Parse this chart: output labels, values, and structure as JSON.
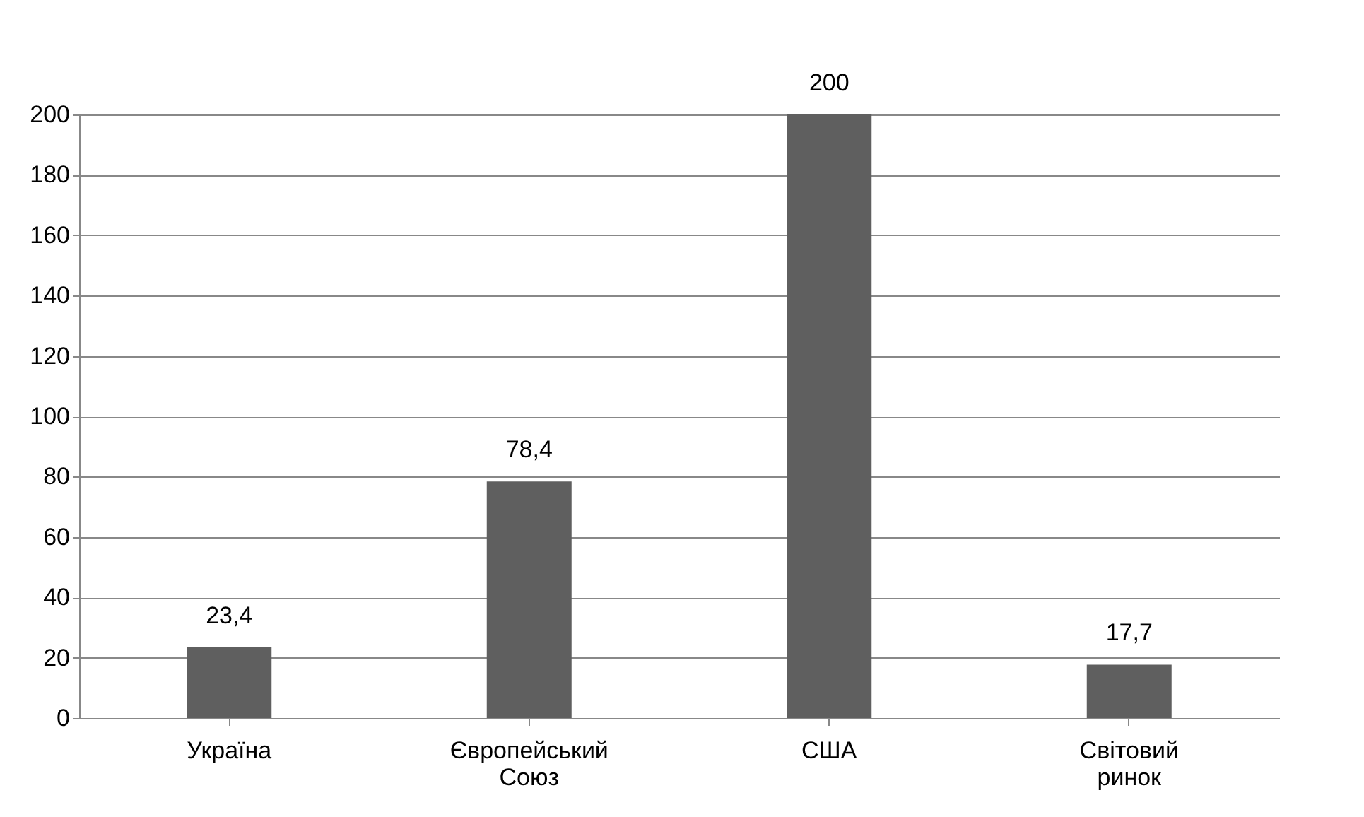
{
  "chart_data": {
    "type": "bar",
    "categories": [
      "Україна",
      "Європейський Союз",
      "США",
      "Світовий ринок"
    ],
    "values": [
      23.4,
      78.4,
      200,
      17.7
    ],
    "value_labels": [
      "23,4",
      "78,4",
      "200",
      "17,7"
    ],
    "color": "#5f5f5f",
    "ylim": [
      0,
      200
    ],
    "yticks": [
      0,
      20,
      40,
      60,
      80,
      100,
      120,
      140,
      160,
      180,
      200
    ],
    "grid": "y"
  }
}
